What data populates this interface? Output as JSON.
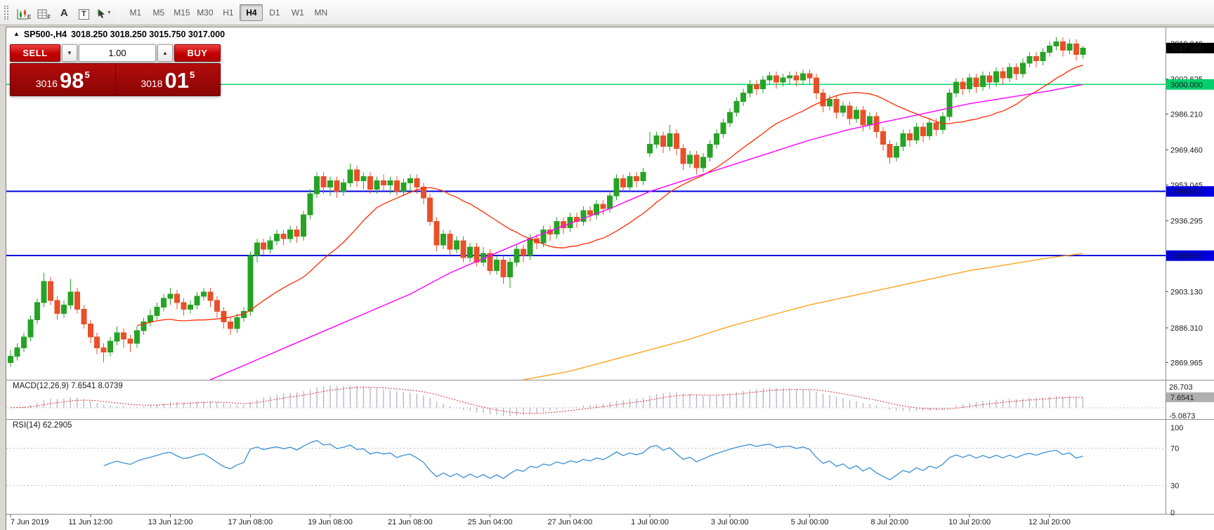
{
  "toolbar": {
    "icons": [
      {
        "name": "chart-expert-icon",
        "label": "E"
      },
      {
        "name": "data-window-icon",
        "label": "F"
      },
      {
        "name": "font-tool-icon",
        "label": "A"
      },
      {
        "name": "text-label-tool-icon",
        "label": "T"
      },
      {
        "name": "cursor-tool-icon",
        "label": "▾"
      }
    ],
    "timeframes": [
      "M1",
      "M5",
      "M15",
      "M30",
      "H1",
      "H4",
      "D1",
      "W1",
      "MN"
    ],
    "active_timeframe": "H4"
  },
  "chart": {
    "title_triangle": "▲",
    "title_symbol": "SP500-,H4",
    "title_ohlc": "3018.250 3018.250 3015.750 3017.000"
  },
  "trade_panel": {
    "sell_label": "SELL",
    "buy_label": "BUY",
    "volume": "1.00",
    "decrease_glyph": "▼",
    "increase_glyph": "▲",
    "sell_price": {
      "prefix": "3016",
      "big": "98",
      "sup": "5"
    },
    "buy_price": {
      "prefix": "3018",
      "big": "01",
      "sup": "5"
    }
  },
  "price_axis": {
    "ticks": [
      {
        "text": "3019.040",
        "value": 3019.04
      },
      {
        "text": "3002.625",
        "value": 3002.625
      },
      {
        "text": "2986.210",
        "value": 2986.21
      },
      {
        "text": "2969.460",
        "value": 2969.46
      },
      {
        "text": "2953.045",
        "value": 2953.045
      },
      {
        "text": "2936.295",
        "value": 2936.295
      },
      {
        "text": "2903.130",
        "value": 2903.13
      },
      {
        "text": "2886.310",
        "value": 2886.31
      },
      {
        "text": "2869.965",
        "value": 2869.965
      }
    ],
    "badges": [
      {
        "text": "3017.000",
        "value": 3017.0,
        "bg": "#000000",
        "fg": "#ffffff"
      },
      {
        "text": "3000.000",
        "value": 3000.0,
        "bg": "#00cf6e",
        "fg": "#ffffff"
      },
      {
        "text": "2950.000",
        "value": 2950.0,
        "bg": "#0000dd",
        "fg": "#ffffff"
      },
      {
        "text": "2920.000",
        "value": 2920.0,
        "bg": "#0000dd",
        "fg": "#ffffff"
      }
    ]
  },
  "hlines": [
    {
      "value": 3000.0,
      "color": "#00d96b",
      "width": 1.5
    },
    {
      "value": 2950.0,
      "color": "#0000e0",
      "width": 2
    },
    {
      "value": 2920.0,
      "color": "#0000e0",
      "width": 2
    }
  ],
  "colors": {
    "bull": "#25a325",
    "bear": "#e8502a",
    "ma_fast": "#ff2a00",
    "ma_medium": "#ff00ff",
    "ma_slow": "#ffa420",
    "macd_hist": "#b4b4ca",
    "macd_signal": "#e03030",
    "rsi": "#3b8fd4",
    "level_dotted": "#c0c0c0",
    "separator": "#8e8e8e"
  },
  "chart_data": {
    "type": "candlestick",
    "symbol": "SP500-",
    "timeframe": "H4",
    "price_range": [
      2862,
      3026
    ],
    "x_labels": [
      "7 Jun 2019",
      "11 Jun 12:00",
      "13 Jun 12:00",
      "17 Jun 08:00",
      "19 Jun 08:00",
      "21 Jun 08:00",
      "25 Jun 04:00",
      "27 Jun 04:00",
      "1 Jul 00:00",
      "3 Jul 00:00",
      "5 Jul 00:00",
      "8 Jul 20:00",
      "10 Jul 20:00",
      "12 Jul 20:00"
    ],
    "x_label_bar_indices": [
      0,
      12,
      24,
      36,
      48,
      60,
      72,
      84,
      96,
      108,
      120,
      132,
      144,
      156
    ],
    "candles": [
      [
        2870,
        2876,
        2868,
        2873
      ],
      [
        2873,
        2879,
        2871,
        2877
      ],
      [
        2877,
        2884,
        2875,
        2882
      ],
      [
        2882,
        2892,
        2880,
        2890
      ],
      [
        2890,
        2900,
        2888,
        2898
      ],
      [
        2898,
        2912,
        2896,
        2908
      ],
      [
        2908,
        2910,
        2897,
        2899
      ],
      [
        2899,
        2901,
        2890,
        2893
      ],
      [
        2893,
        2899,
        2891,
        2897
      ],
      [
        2897,
        2909,
        2895,
        2903
      ],
      [
        2903,
        2905,
        2893,
        2895
      ],
      [
        2895,
        2897,
        2886,
        2888
      ],
      [
        2888,
        2890,
        2879,
        2882
      ],
      [
        2882,
        2884,
        2874,
        2877
      ],
      [
        2877,
        2879,
        2870,
        2875
      ],
      [
        2875,
        2882,
        2873,
        2880
      ],
      [
        2880,
        2887,
        2878,
        2884
      ],
      [
        2884,
        2886,
        2877,
        2881
      ],
      [
        2881,
        2883,
        2875,
        2879
      ],
      [
        2879,
        2887,
        2877,
        2885
      ],
      [
        2885,
        2891,
        2883,
        2889
      ],
      [
        2889,
        2895,
        2887,
        2892
      ],
      [
        2892,
        2898,
        2890,
        2896
      ],
      [
        2896,
        2902,
        2894,
        2900
      ],
      [
        2900,
        2905,
        2897,
        2902
      ],
      [
        2902,
        2904,
        2895,
        2898
      ],
      [
        2898,
        2900,
        2892,
        2895
      ],
      [
        2895,
        2899,
        2893,
        2897
      ],
      [
        2897,
        2903,
        2895,
        2901
      ],
      [
        2901,
        2905,
        2899,
        2903
      ],
      [
        2903,
        2905,
        2896,
        2899
      ],
      [
        2899,
        2901,
        2891,
        2894
      ],
      [
        2894,
        2896,
        2886,
        2889
      ],
      [
        2889,
        2891,
        2883,
        2886
      ],
      [
        2886,
        2893,
        2884,
        2891
      ],
      [
        2891,
        2896,
        2889,
        2894
      ],
      [
        2894,
        2922,
        2892,
        2920
      ],
      [
        2920,
        2928,
        2917,
        2926
      ],
      [
        2926,
        2928,
        2920,
        2923
      ],
      [
        2923,
        2929,
        2921,
        2927
      ],
      [
        2927,
        2932,
        2925,
        2930
      ],
      [
        2930,
        2932,
        2925,
        2928
      ],
      [
        2928,
        2934,
        2926,
        2932
      ],
      [
        2932,
        2934,
        2926,
        2929
      ],
      [
        2929,
        2941,
        2927,
        2939
      ],
      [
        2939,
        2951,
        2937,
        2949
      ],
      [
        2949,
        2959,
        2947,
        2957
      ],
      [
        2957,
        2959,
        2949,
        2952
      ],
      [
        2952,
        2957,
        2948,
        2955
      ],
      [
        2955,
        2957,
        2947,
        2950
      ],
      [
        2950,
        2956,
        2948,
        2954
      ],
      [
        2954,
        2963,
        2952,
        2960
      ],
      [
        2960,
        2962,
        2952,
        2955
      ],
      [
        2955,
        2959,
        2951,
        2957
      ],
      [
        2957,
        2959,
        2949,
        2951
      ],
      [
        2951,
        2957,
        2949,
        2955
      ],
      [
        2955,
        2958,
        2950,
        2953
      ],
      [
        2953,
        2957,
        2949,
        2955
      ],
      [
        2955,
        2957,
        2948,
        2950
      ],
      [
        2950,
        2956,
        2948,
        2954
      ],
      [
        2954,
        2958,
        2950,
        2956
      ],
      [
        2956,
        2958,
        2949,
        2952
      ],
      [
        2952,
        2954,
        2944,
        2947
      ],
      [
        2947,
        2949,
        2934,
        2936
      ],
      [
        2936,
        2938,
        2922,
        2925
      ],
      [
        2925,
        2932,
        2923,
        2930
      ],
      [
        2930,
        2932,
        2920,
        2923
      ],
      [
        2923,
        2929,
        2921,
        2927
      ],
      [
        2927,
        2929,
        2917,
        2919
      ],
      [
        2919,
        2926,
        2917,
        2924
      ],
      [
        2924,
        2926,
        2915,
        2917
      ],
      [
        2917,
        2924,
        2915,
        2921
      ],
      [
        2921,
        2923,
        2911,
        2913
      ],
      [
        2913,
        2920,
        2911,
        2918
      ],
      [
        2918,
        2920,
        2907,
        2910
      ],
      [
        2910,
        2919,
        2905,
        2917
      ],
      [
        2917,
        2925,
        2915,
        2923
      ],
      [
        2923,
        2925,
        2917,
        2920
      ],
      [
        2920,
        2930,
        2918,
        2928
      ],
      [
        2928,
        2930,
        2923,
        2926
      ],
      [
        2926,
        2934,
        2924,
        2932
      ],
      [
        2932,
        2934,
        2927,
        2930
      ],
      [
        2930,
        2938,
        2928,
        2936
      ],
      [
        2936,
        2938,
        2930,
        2933
      ],
      [
        2933,
        2940,
        2931,
        2938
      ],
      [
        2938,
        2940,
        2933,
        2936
      ],
      [
        2936,
        2943,
        2934,
        2941
      ],
      [
        2941,
        2943,
        2936,
        2939
      ],
      [
        2939,
        2946,
        2937,
        2944
      ],
      [
        2944,
        2946,
        2939,
        2942
      ],
      [
        2942,
        2950,
        2940,
        2948
      ],
      [
        2948,
        2958,
        2946,
        2956
      ],
      [
        2956,
        2958,
        2950,
        2952
      ],
      [
        2952,
        2959,
        2950,
        2957
      ],
      [
        2957,
        2959,
        2952,
        2955
      ],
      [
        2955,
        2961,
        2953,
        2959
      ],
      [
        2968,
        2978,
        2966,
        2972
      ],
      [
        2972,
        2978,
        2970,
        2976
      ],
      [
        2976,
        2978,
        2968,
        2971
      ],
      [
        2971,
        2981,
        2969,
        2977
      ],
      [
        2977,
        2979,
        2967,
        2970
      ],
      [
        2970,
        2972,
        2960,
        2963
      ],
      [
        2963,
        2969,
        2961,
        2967
      ],
      [
        2967,
        2969,
        2958,
        2961
      ],
      [
        2961,
        2968,
        2959,
        2966
      ],
      [
        2966,
        2974,
        2964,
        2972
      ],
      [
        2972,
        2979,
        2970,
        2977
      ],
      [
        2977,
        2984,
        2975,
        2982
      ],
      [
        2982,
        2989,
        2980,
        2987
      ],
      [
        2987,
        2994,
        2985,
        2992
      ],
      [
        2992,
        2998,
        2990,
        2996
      ],
      [
        2996,
        3002,
        2994,
        3000
      ],
      [
        3000,
        3002,
        2995,
        2998
      ],
      [
        2998,
        3004,
        2996,
        3002
      ],
      [
        3002,
        3006,
        3000,
        3004
      ],
      [
        3004,
        3006,
        2998,
        3001
      ],
      [
        3001,
        3005,
        2999,
        3003
      ],
      [
        3003,
        3006,
        3000,
        3004
      ],
      [
        3004,
        3006,
        2999,
        3002
      ],
      [
        3002,
        3007,
        3000,
        3005
      ],
      [
        3005,
        3007,
        3000,
        3003
      ],
      [
        3003,
        3005,
        2993,
        2996
      ],
      [
        2996,
        2998,
        2987,
        2990
      ],
      [
        2990,
        2995,
        2988,
        2993
      ],
      [
        2993,
        2995,
        2984,
        2987
      ],
      [
        2987,
        2992,
        2985,
        2990
      ],
      [
        2990,
        2992,
        2981,
        2984
      ],
      [
        2984,
        2990,
        2982,
        2988
      ],
      [
        2988,
        2990,
        2978,
        2981
      ],
      [
        2981,
        2987,
        2979,
        2985
      ],
      [
        2985,
        2987,
        2975,
        2978
      ],
      [
        2978,
        2980,
        2969,
        2972
      ],
      [
        2972,
        2974,
        2963,
        2966
      ],
      [
        2966,
        2973,
        2964,
        2971
      ],
      [
        2971,
        2979,
        2969,
        2977
      ],
      [
        2977,
        2979,
        2971,
        2974
      ],
      [
        2974,
        2982,
        2972,
        2980
      ],
      [
        2980,
        2982,
        2973,
        2976
      ],
      [
        2976,
        2984,
        2974,
        2982
      ],
      [
        2982,
        2984,
        2976,
        2979
      ],
      [
        2979,
        2987,
        2977,
        2985
      ],
      [
        2985,
        2998,
        2983,
        2996
      ],
      [
        2996,
        3003,
        2994,
        3001
      ],
      [
        3001,
        3003,
        2995,
        2998
      ],
      [
        2998,
        3005,
        2996,
        3003
      ],
      [
        3003,
        3005,
        2996,
        2999
      ],
      [
        2999,
        3006,
        2997,
        3004
      ],
      [
        3004,
        3006,
        2998,
        3001
      ],
      [
        3001,
        3008,
        2999,
        3006
      ],
      [
        3006,
        3008,
        3000,
        3003
      ],
      [
        3003,
        3010,
        3001,
        3008
      ],
      [
        3008,
        3010,
        3002,
        3005
      ],
      [
        3005,
        3012,
        3003,
        3010
      ],
      [
        3010,
        3015,
        3008,
        3013
      ],
      [
        3013,
        3015,
        3008,
        3011
      ],
      [
        3011,
        3017,
        3009,
        3015
      ],
      [
        3015,
        3020,
        3013,
        3018
      ],
      [
        3018,
        3022,
        3016,
        3020
      ],
      [
        3020,
        3022,
        3013,
        3016
      ],
      [
        3016,
        3021,
        3014,
        3019
      ],
      [
        3019,
        3021,
        3011,
        3014
      ],
      [
        3014,
        3018,
        3012,
        3017
      ]
    ],
    "overlays": [
      {
        "name": "ma-fast",
        "type": "sma",
        "period": 20
      },
      {
        "name": "ma-medium",
        "type": "anchors",
        "anchors": [
          [
            30,
            2862
          ],
          [
            36,
            2870
          ],
          [
            42,
            2878
          ],
          [
            48,
            2886
          ],
          [
            54,
            2894
          ],
          [
            60,
            2902
          ],
          [
            66,
            2912
          ],
          [
            72,
            2920
          ],
          [
            78,
            2928
          ],
          [
            84,
            2935
          ],
          [
            90,
            2942
          ],
          [
            96,
            2950
          ],
          [
            102,
            2956
          ],
          [
            108,
            2962
          ],
          [
            114,
            2968
          ],
          [
            120,
            2974
          ],
          [
            126,
            2979
          ],
          [
            132,
            2983
          ],
          [
            138,
            2987
          ],
          [
            144,
            2991
          ],
          [
            150,
            2994
          ],
          [
            156,
            2997
          ],
          [
            161,
            3000
          ]
        ]
      },
      {
        "name": "ma-slow",
        "type": "anchors",
        "anchors": [
          [
            77,
            2862
          ],
          [
            84,
            2866
          ],
          [
            90,
            2871
          ],
          [
            96,
            2876
          ],
          [
            102,
            2881
          ],
          [
            108,
            2887
          ],
          [
            114,
            2892
          ],
          [
            120,
            2897
          ],
          [
            126,
            2901
          ],
          [
            132,
            2905
          ],
          [
            138,
            2909
          ],
          [
            144,
            2913
          ],
          [
            150,
            2916
          ],
          [
            156,
            2919
          ],
          [
            161,
            2921
          ]
        ]
      }
    ],
    "indicators": [
      {
        "name": "MACD",
        "label": "MACD(12,26,9) 7.6541 8.0739",
        "fast": 12,
        "slow": 26,
        "signal": 9,
        "axis_top": "26.703",
        "axis_bottom": "-5.0873",
        "badge": "7.6541"
      },
      {
        "name": "RSI",
        "label": "RSI(14) 62.2905",
        "period": 14,
        "levels": [
          70,
          30
        ],
        "axis_labels": [
          {
            "text": "100",
            "value": 100
          },
          {
            "text": "70",
            "value": 70
          },
          {
            "text": "30",
            "value": 30
          },
          {
            "text": "0",
            "value": 0
          }
        ]
      }
    ]
  }
}
